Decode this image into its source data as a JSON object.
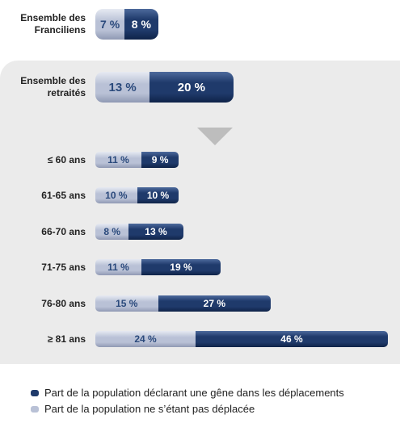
{
  "chart_data": {
    "type": "bar",
    "categories": [
      "Ensemble des Franciliens",
      "Ensemble des retraités",
      "≤ 60 ans",
      "61-65 ans",
      "66-70 ans",
      "71-75 ans",
      "76-80 ans",
      "≥ 81 ans"
    ],
    "series": [
      {
        "name": "Part de la population ne s’étant pas déplacée",
        "color": "#b9c1d6",
        "values": [
          7,
          13,
          11,
          10,
          8,
          11,
          15,
          24
        ],
        "value_labels": [
          "7 %",
          "13 %",
          "11 %",
          "10 %",
          "8 %",
          "11 %",
          "15 %",
          "24 %"
        ]
      },
      {
        "name": "Part de la population déclarant une gêne dans les déplacements",
        "color": "#1f3a6b",
        "values": [
          8,
          20,
          9,
          10,
          13,
          19,
          27,
          46
        ],
        "value_labels": [
          "8 %",
          "20 %",
          "9 %",
          "10 %",
          "13 %",
          "19 %",
          "27 %",
          "46 %"
        ]
      }
    ]
  }
}
